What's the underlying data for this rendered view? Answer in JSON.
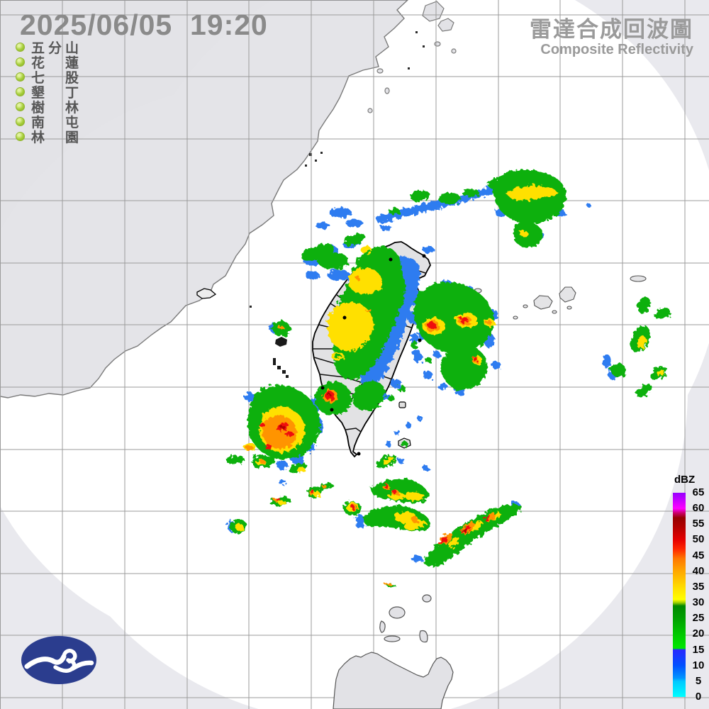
{
  "header": {
    "timestamp": "2025/06/05  19:20",
    "title_zh": "雷達合成回波圖",
    "title_en": "Composite Reflectivity"
  },
  "stations": {
    "status_color": "#a6ce39",
    "items": [
      {
        "name": "五分山",
        "chars": [
          "五",
          "分",
          "山"
        ]
      },
      {
        "name": "花蓮",
        "chars": [
          "花",
          "",
          "蓮"
        ]
      },
      {
        "name": "七股",
        "chars": [
          "七",
          "",
          "股"
        ]
      },
      {
        "name": "墾丁",
        "chars": [
          "墾",
          "",
          "丁"
        ]
      },
      {
        "name": "樹林",
        "chars": [
          "樹",
          "",
          "林"
        ]
      },
      {
        "name": "南屯",
        "chars": [
          "南",
          "",
          "屯"
        ]
      },
      {
        "name": "林園",
        "chars": [
          "林",
          "",
          "園"
        ]
      }
    ]
  },
  "colorbar": {
    "title": "dBZ",
    "min": 0,
    "max": 65,
    "ticks": [
      65,
      60,
      55,
      50,
      45,
      40,
      35,
      30,
      25,
      20,
      15,
      10,
      5,
      0
    ],
    "gradient": [
      {
        "v": 0,
        "c": "#00ffff"
      },
      {
        "v": 5,
        "c": "#00c8ff"
      },
      {
        "v": 6,
        "c": "#0096ff"
      },
      {
        "v": 10,
        "c": "#0050ff"
      },
      {
        "v": 15,
        "c": "#2828ff"
      },
      {
        "v": 15.5,
        "c": "#00e800"
      },
      {
        "v": 20,
        "c": "#00c800"
      },
      {
        "v": 25,
        "c": "#00a000"
      },
      {
        "v": 29,
        "c": "#008800"
      },
      {
        "v": 30,
        "c": "#a0d000"
      },
      {
        "v": 31,
        "c": "#ffff00"
      },
      {
        "v": 35,
        "c": "#ffdc00"
      },
      {
        "v": 40,
        "c": "#ffa800"
      },
      {
        "v": 44,
        "c": "#ff7800"
      },
      {
        "v": 47,
        "c": "#ff2800"
      },
      {
        "v": 50,
        "c": "#e60000"
      },
      {
        "v": 54,
        "c": "#b40000"
      },
      {
        "v": 57,
        "c": "#960000"
      },
      {
        "v": 58.5,
        "c": "#c80064"
      },
      {
        "v": 60,
        "c": "#ff00ff"
      },
      {
        "v": 62.5,
        "c": "#c800ff"
      },
      {
        "v": 65,
        "c": "#9600ff"
      }
    ]
  },
  "map_colors": {
    "sea_in_range": "#ffffff",
    "out_of_range": "#e9e9ee",
    "land": "#e2e2e6",
    "grid": "#9b9b9b",
    "logo_blue": "#2b3d8e"
  }
}
